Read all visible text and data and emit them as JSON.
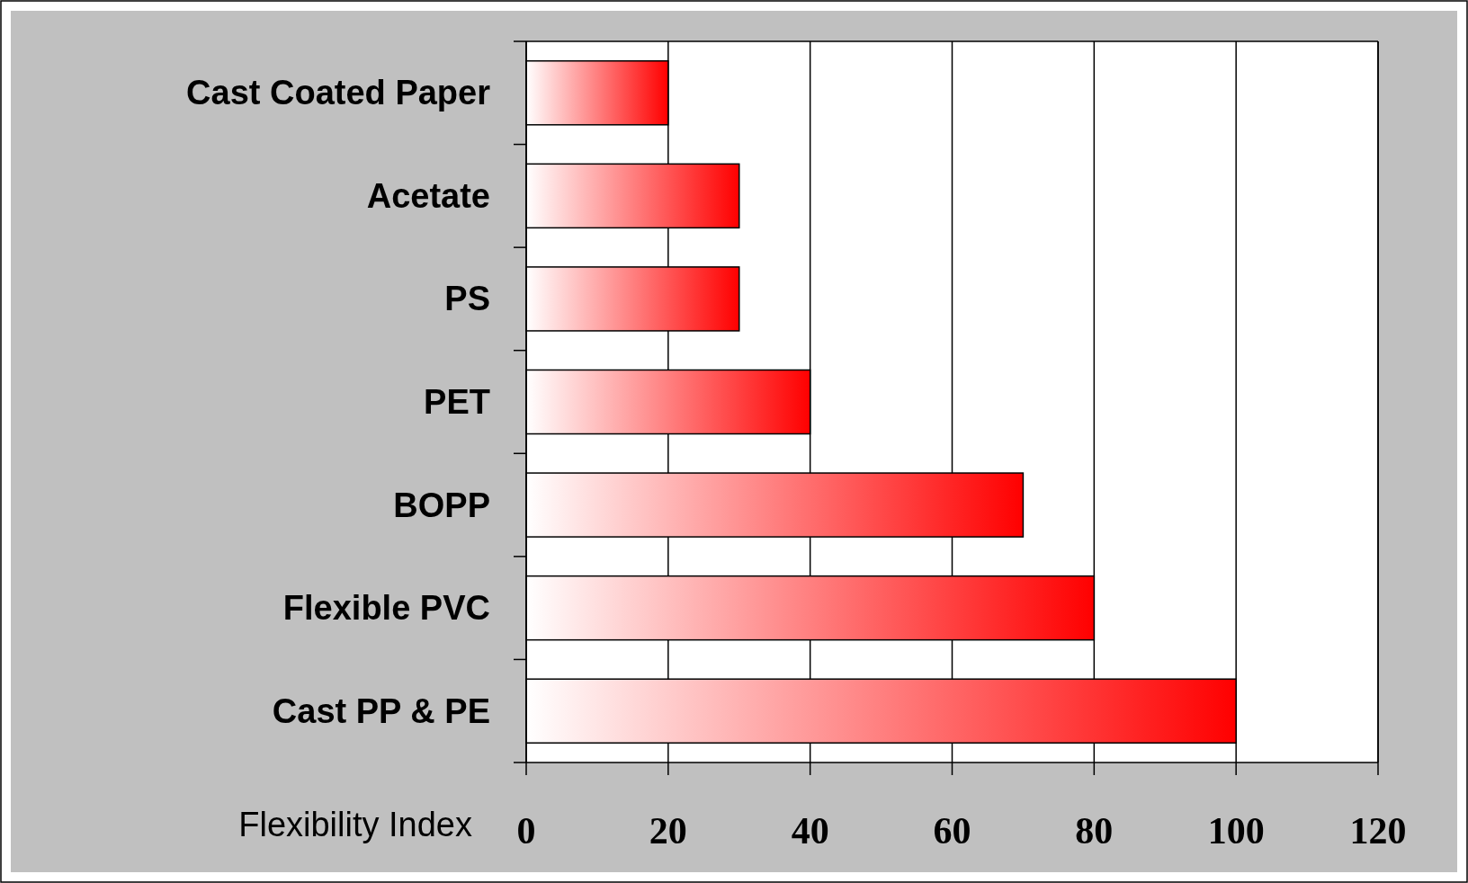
{
  "chart_data": {
    "type": "bar",
    "orientation": "horizontal",
    "xlabel": "Flexibility Index",
    "categories": [
      "Cast Coated Paper",
      "Acetate",
      "PS",
      "PET",
      "BOPP",
      "Flexible PVC",
      "Cast PP & PE"
    ],
    "values": [
      20,
      30,
      30,
      40,
      70,
      80,
      100
    ],
    "color": "#ff0000",
    "xlim": [
      0,
      120
    ],
    "xticks": [
      0,
      20,
      40,
      60,
      80,
      100,
      120
    ],
    "grid": "x"
  }
}
